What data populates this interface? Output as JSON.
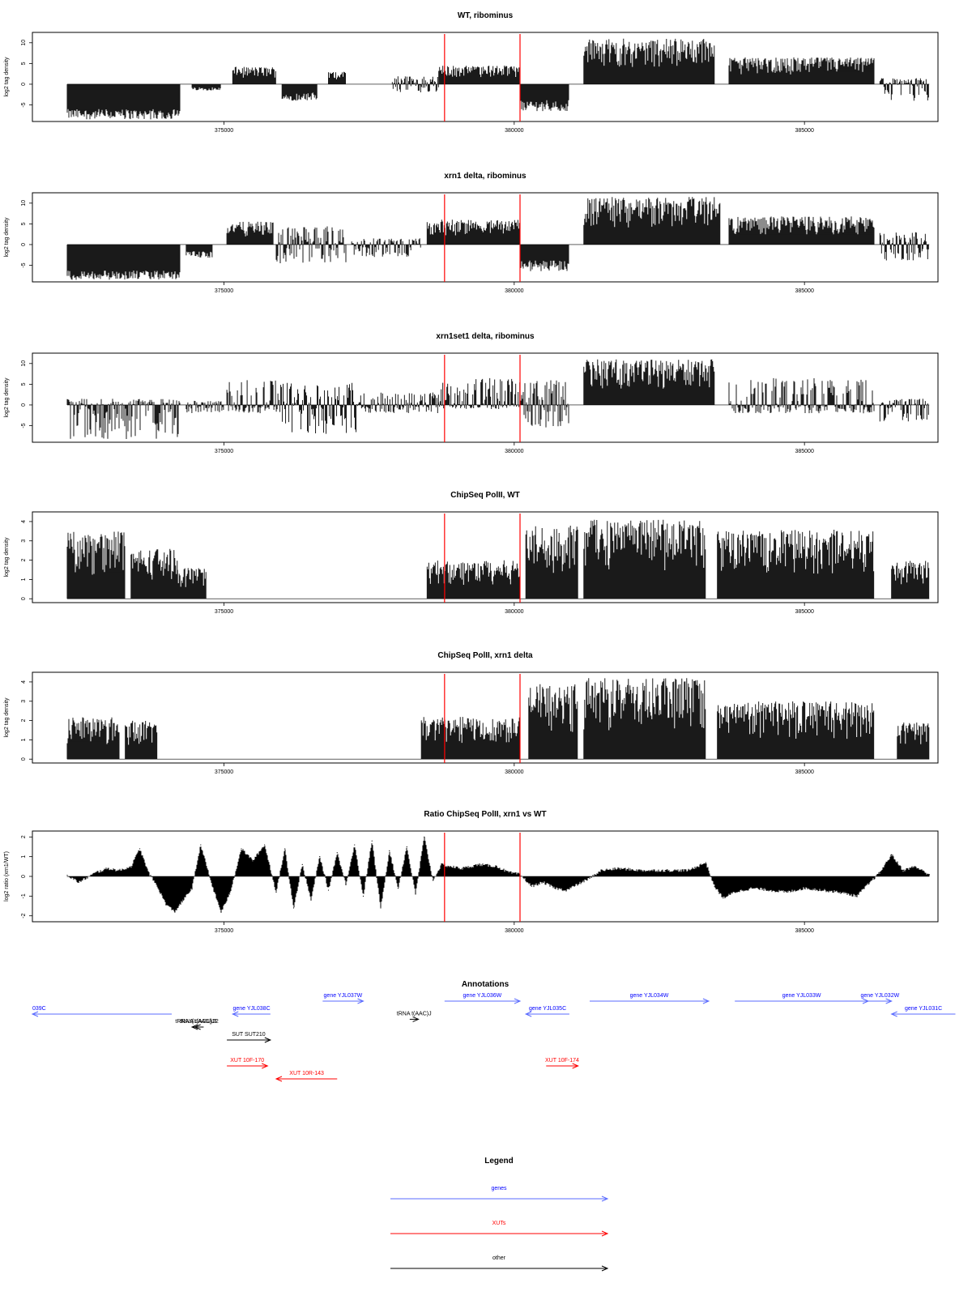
{
  "x_ticks": [
    375000,
    380000,
    385000
  ],
  "x_tick_labels": [
    "375000",
    "380000",
    "385000"
  ],
  "marker_positions": [
    378800,
    380100
  ],
  "marker_color": "#ff0000",
  "chart_data": [
    {
      "type": "bar",
      "title": "WT, ribominus",
      "ylabel": "log2 tag density",
      "ylim": [
        -9,
        12.5
      ],
      "yticks": [
        -5,
        0,
        5,
        10
      ],
      "xlim": [
        371700,
        387300
      ],
      "segments": [
        {
          "start": 372300,
          "end": 374250,
          "min": -8.5,
          "max": -3.5
        },
        {
          "start": 374450,
          "end": 374950,
          "min": -1.5,
          "max": 0
        },
        {
          "start": 375150,
          "end": 375900,
          "min": 0,
          "max": 4.2
        },
        {
          "start": 376000,
          "end": 376600,
          "min": -4,
          "max": 0
        },
        {
          "start": 376800,
          "end": 377100,
          "min": 0,
          "max": 3
        },
        {
          "start": 377900,
          "end": 378700,
          "min": -2,
          "max": 2
        },
        {
          "start": 378700,
          "end": 380100,
          "min": 0,
          "max": 4.5
        },
        {
          "start": 380100,
          "end": 380950,
          "min": -6.5,
          "max": -1
        },
        {
          "start": 381200,
          "end": 383450,
          "min": 0,
          "max": 11
        },
        {
          "start": 383700,
          "end": 386200,
          "min": 0,
          "max": 6.5
        },
        {
          "start": 386300,
          "end": 387150,
          "min": -4,
          "max": 1.5
        }
      ]
    },
    {
      "type": "bar",
      "title": "xrn1 delta, ribominus",
      "ylabel": "log2 tag density",
      "ylim": [
        -9,
        12.5
      ],
      "yticks": [
        -5,
        0,
        5,
        10
      ],
      "xlim": [
        371700,
        387300
      ],
      "segments": [
        {
          "start": 372300,
          "end": 374250,
          "min": -8.5,
          "max": -4
        },
        {
          "start": 374350,
          "end": 374800,
          "min": -3.2,
          "max": 0
        },
        {
          "start": 375050,
          "end": 375850,
          "min": 0,
          "max": 5.5
        },
        {
          "start": 375900,
          "end": 377100,
          "min": -5,
          "max": 4.5
        },
        {
          "start": 377200,
          "end": 378400,
          "min": -3,
          "max": 1.5
        },
        {
          "start": 378500,
          "end": 380100,
          "min": 0,
          "max": 6
        },
        {
          "start": 380100,
          "end": 380950,
          "min": -6.5,
          "max": -1
        },
        {
          "start": 381200,
          "end": 383550,
          "min": 0,
          "max": 11.5
        },
        {
          "start": 383700,
          "end": 386200,
          "min": 0,
          "max": 6.8
        },
        {
          "start": 386300,
          "end": 387150,
          "min": -4,
          "max": 3
        }
      ]
    },
    {
      "type": "bar",
      "title": "xrn1set1 delta, ribominus",
      "ylabel": "log2 tag density",
      "ylim": [
        -9,
        12.5
      ],
      "yticks": [
        -5,
        0,
        5,
        10
      ],
      "xlim": [
        371700,
        387300
      ],
      "segments": [
        {
          "start": 372300,
          "end": 374250,
          "min": -8.5,
          "max": 1.5
        },
        {
          "start": 374350,
          "end": 375000,
          "min": -2,
          "max": 1
        },
        {
          "start": 375050,
          "end": 375950,
          "min": -2,
          "max": 6.5
        },
        {
          "start": 375950,
          "end": 377300,
          "min": -7,
          "max": 5.5
        },
        {
          "start": 377300,
          "end": 378700,
          "min": -2,
          "max": 3
        },
        {
          "start": 378700,
          "end": 380100,
          "min": -1,
          "max": 6.5
        },
        {
          "start": 380100,
          "end": 380950,
          "min": -5.5,
          "max": 6
        },
        {
          "start": 381200,
          "end": 383450,
          "min": 0,
          "max": 11
        },
        {
          "start": 383700,
          "end": 386200,
          "min": -2,
          "max": 6.5
        },
        {
          "start": 386300,
          "end": 387150,
          "min": -4,
          "max": 1.5
        }
      ]
    },
    {
      "type": "bar",
      "title": "ChipSeq PolII, WT",
      "ylabel": "log2 tag density",
      "ylim": [
        -0.2,
        4.5
      ],
      "yticks": [
        0,
        1,
        2,
        3,
        4
      ],
      "xlim": [
        371700,
        387300
      ],
      "segments": [
        {
          "start": 372300,
          "end": 373300,
          "min": 0,
          "max": 3.5
        },
        {
          "start": 373400,
          "end": 374200,
          "min": 0,
          "max": 2.6
        },
        {
          "start": 374200,
          "end": 374700,
          "min": 0,
          "max": 1.6
        },
        {
          "start": 378500,
          "end": 380100,
          "min": 0,
          "max": 2
        },
        {
          "start": 380200,
          "end": 381100,
          "min": 0,
          "max": 3.8
        },
        {
          "start": 381200,
          "end": 383300,
          "min": 0,
          "max": 4.1
        },
        {
          "start": 383500,
          "end": 386200,
          "min": 0,
          "max": 3.6
        },
        {
          "start": 386500,
          "end": 387150,
          "min": 0,
          "max": 2
        }
      ]
    },
    {
      "type": "bar",
      "title": "ChipSeq PolII, xrn1 delta",
      "ylabel": "log2 tag density",
      "ylim": [
        -0.2,
        4.5
      ],
      "yticks": [
        0,
        1,
        2,
        3,
        4
      ],
      "xlim": [
        371700,
        387300
      ],
      "segments": [
        {
          "start": 372300,
          "end": 373200,
          "min": 0,
          "max": 2.2
        },
        {
          "start": 373300,
          "end": 373850,
          "min": 0,
          "max": 2
        },
        {
          "start": 378400,
          "end": 380100,
          "min": 0,
          "max": 2.2
        },
        {
          "start": 380250,
          "end": 381100,
          "min": 0,
          "max": 3.9
        },
        {
          "start": 381200,
          "end": 383300,
          "min": 0,
          "max": 4.2
        },
        {
          "start": 383500,
          "end": 386200,
          "min": 0,
          "max": 3
        },
        {
          "start": 386600,
          "end": 387150,
          "min": 0,
          "max": 1.9
        }
      ]
    },
    {
      "type": "area",
      "title": "Ratio ChipSeq PolII, xrn1 vs WT",
      "ylabel": "log2 ratio (xrn1/WT)",
      "ylim": [
        -2.3,
        2.3
      ],
      "yticks": [
        -2,
        -1,
        0,
        1,
        2
      ],
      "xlim": [
        371700,
        387300
      ],
      "x": [
        372300,
        372500,
        372800,
        373000,
        373200,
        373400,
        373550,
        373700,
        373850,
        374000,
        374150,
        374300,
        374450,
        374600,
        374800,
        374950,
        375100,
        375300,
        375500,
        375700,
        375900,
        376050,
        376200,
        376350,
        376500,
        376650,
        376800,
        376950,
        377100,
        377250,
        377400,
        377550,
        377700,
        377850,
        378000,
        378150,
        378300,
        378450,
        378600,
        378750,
        378900,
        379100,
        379400,
        379700,
        379900,
        380100,
        380300,
        380500,
        380700,
        380900,
        381100,
        381300,
        381500,
        381800,
        382200,
        382600,
        383000,
        383300,
        383450,
        383600,
        383800,
        384100,
        384400,
        384700,
        385000,
        385300,
        385600,
        385900,
        386100,
        386300,
        386500,
        386700,
        386900,
        387150
      ],
      "y": [
        0.05,
        -0.3,
        0.2,
        0.4,
        0.3,
        0.5,
        1.4,
        0.2,
        -0.5,
        -1.4,
        -1.8,
        -1.2,
        -0.6,
        1.6,
        -0.5,
        -1.8,
        -0.9,
        1.4,
        0.8,
        1.6,
        -0.8,
        1.4,
        -1.6,
        0.6,
        -1.2,
        1.0,
        -0.7,
        1.2,
        -0.4,
        1.6,
        -1.0,
        1.8,
        -1.6,
        1.3,
        -0.6,
        1.5,
        -0.9,
        2.0,
        -0.2,
        0.6,
        0.5,
        0.4,
        0.6,
        0.5,
        0.2,
        0.1,
        -0.5,
        -0.3,
        -0.6,
        -0.7,
        -0.4,
        -0.1,
        0.3,
        0.4,
        0.3,
        0.3,
        0.3,
        0.7,
        -0.5,
        -1.1,
        -0.8,
        -0.6,
        -0.7,
        -0.8,
        -0.6,
        -0.7,
        -0.8,
        -1.0,
        -0.4,
        0.2,
        1.1,
        0.3,
        0.5,
        0.1
      ]
    }
  ],
  "annotations": {
    "title": "Annotations",
    "features": [
      {
        "label": "039C",
        "kind": "gene",
        "start": 371700,
        "end": 374100,
        "strand": "-",
        "row": 0
      },
      {
        "label": "gene YJL038C",
        "kind": "gene",
        "start": 375150,
        "end": 375800,
        "strand": "-",
        "row": 0
      },
      {
        "label": "gene YJL037W",
        "kind": "gene",
        "start": 376700,
        "end": 377400,
        "strand": "+",
        "row": -1
      },
      {
        "label": "gene YJL036W",
        "kind": "gene",
        "start": 378800,
        "end": 380100,
        "strand": "+",
        "row": -1
      },
      {
        "label": "gene YJL035C",
        "kind": "gene",
        "start": 380200,
        "end": 380950,
        "strand": "-",
        "row": 0
      },
      {
        "label": "gene YJL034W",
        "kind": "gene",
        "start": 381300,
        "end": 383350,
        "strand": "+",
        "row": -1
      },
      {
        "label": "gene YJL033W",
        "kind": "gene",
        "start": 383800,
        "end": 386100,
        "strand": "+",
        "row": -1
      },
      {
        "label": "gene YJL032W",
        "kind": "gene",
        "start": 386100,
        "end": 386500,
        "strand": "+",
        "row": -1
      },
      {
        "label": "gene YJL031C",
        "kind": "gene",
        "start": 386500,
        "end": 387600,
        "strand": "-",
        "row": 0
      },
      {
        "label": "tRNA t(UAAG)J1",
        "kind": "other",
        "start": 374450,
        "end": 374600,
        "strand": "-",
        "row": 1
      },
      {
        "label": "tRNA t(AGU)J2",
        "kind": "other",
        "start": 374500,
        "end": 374650,
        "strand": "-",
        "row": 1
      },
      {
        "label": "SUT SUT210",
        "kind": "other",
        "start": 375050,
        "end": 375800,
        "strand": "+",
        "row": 2
      },
      {
        "label": "tRNA t(AAC)J",
        "kind": "other",
        "start": 378200,
        "end": 378350,
        "strand": "+",
        "row": 0.4
      },
      {
        "label": "XUT 10F-170",
        "kind": "xut",
        "start": 375050,
        "end": 375750,
        "strand": "+",
        "row": 4
      },
      {
        "label": "XUT 10R-143",
        "kind": "xut",
        "start": 375900,
        "end": 376950,
        "strand": "-",
        "row": 5
      },
      {
        "label": "XUT 10F-174",
        "kind": "xut",
        "start": 380550,
        "end": 381100,
        "strand": "+",
        "row": 4
      }
    ]
  },
  "legend": {
    "title": "Legend",
    "items": [
      {
        "label": "genes",
        "color": "#0000ff"
      },
      {
        "label": "XUTs",
        "color": "#ff0000"
      },
      {
        "label": "other",
        "color": "#000000"
      }
    ]
  },
  "colors": {
    "gene": "#0000ff",
    "xut": "#ff0000",
    "other": "#000000",
    "gene_line": "#5a6bff"
  }
}
